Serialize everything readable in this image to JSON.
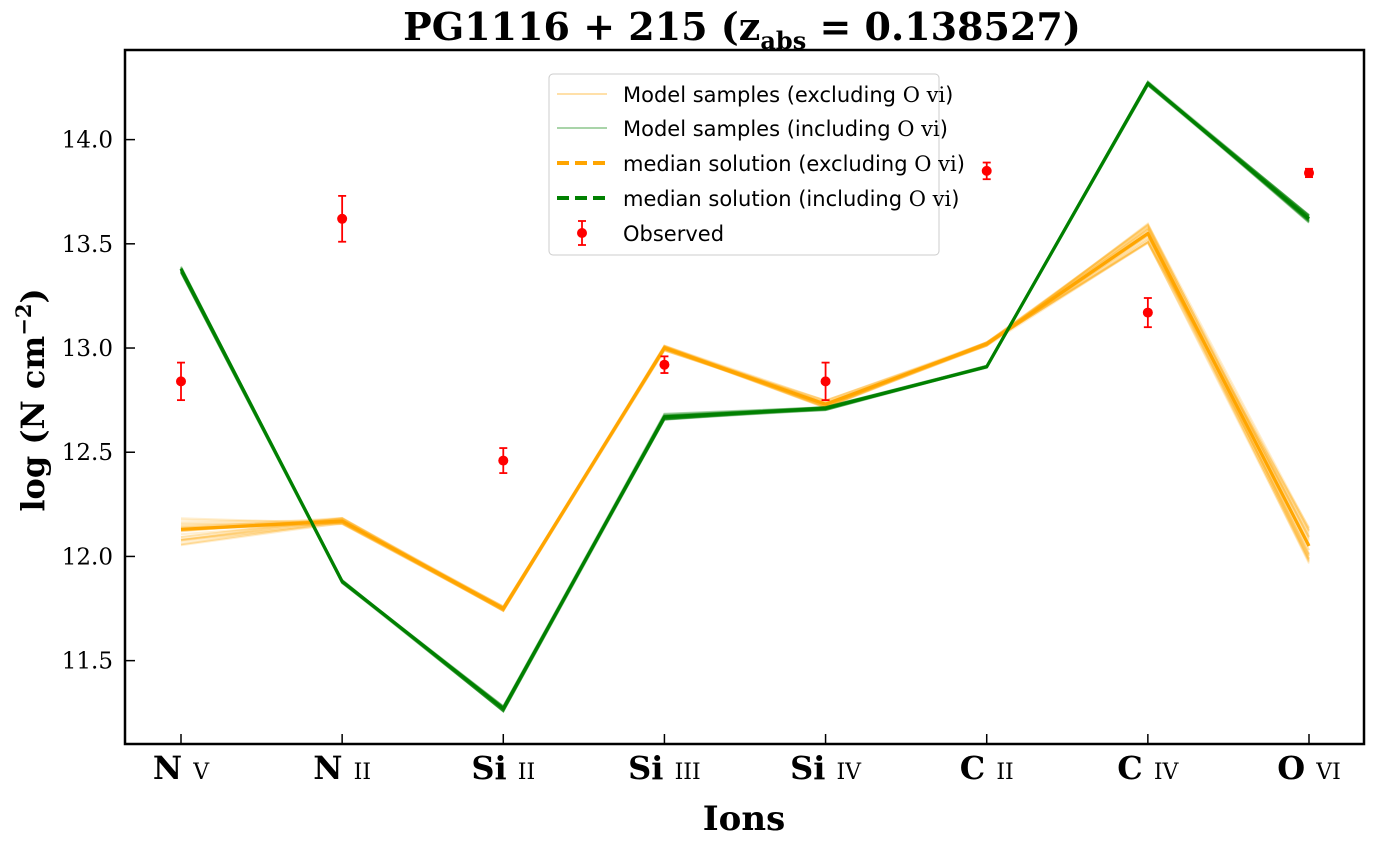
{
  "chart_data": {
    "type": "line",
    "title": "PG1116 + 215 (z",
    "title_sub": "abs",
    "title_tail": " = 0.138527)",
    "xlabel": "Ions",
    "ylabel": "log (N cm",
    "ylabel_sup": "−2",
    "ylabel_tail": ")",
    "categories": [
      "N v",
      "N ii",
      "Si ii",
      "Si iii",
      "Si iv",
      "C ii",
      "C iv",
      "O vi"
    ],
    "category_parts": [
      [
        "N",
        "V"
      ],
      [
        "N",
        "II"
      ],
      [
        "Si",
        "II"
      ],
      [
        "Si",
        "III"
      ],
      [
        "Si",
        "IV"
      ],
      [
        "C",
        "II"
      ],
      [
        "C",
        "IV"
      ],
      [
        "O",
        "VI"
      ]
    ],
    "ylim": [
      11.1,
      14.43
    ],
    "yticks": [
      11.5,
      12.0,
      12.5,
      13.0,
      13.5,
      14.0
    ],
    "ytick_labels": [
      "11.5",
      "12.0",
      "12.5",
      "13.0",
      "13.5",
      "14.0"
    ],
    "grid": false,
    "legend_position": "top-center",
    "series": [
      {
        "name": "median solution (excluding O vi)",
        "legend_label": "median solution (excluding",
        "legend_ion": "O vi",
        "color": "#ffa500",
        "values": [
          12.13,
          12.17,
          11.75,
          13.0,
          12.73,
          13.02,
          13.55,
          12.05
        ]
      },
      {
        "name": "median solution (including O vi)",
        "legend_label": "median solution (including",
        "legend_ion": "O vi",
        "color": "#008000",
        "values": [
          13.38,
          11.88,
          11.27,
          12.67,
          12.71,
          12.91,
          14.27,
          13.62
        ]
      }
    ],
    "model_samples": [
      {
        "name": "Model samples (excluding O vi)",
        "legend_label": "Model samples (excluding",
        "legend_ion": "O vi",
        "color": "#ffa500"
      },
      {
        "name": "Model samples (including O vi)",
        "legend_label": "Model samples (including",
        "legend_ion": "O vi",
        "color": "#008000"
      }
    ],
    "observed": {
      "name": "Observed",
      "color": "#ff0000",
      "values": [
        12.84,
        13.62,
        12.46,
        12.92,
        12.84,
        13.85,
        13.17,
        13.84
      ],
      "errors": [
        0.09,
        0.11,
        0.06,
        0.04,
        0.09,
        0.04,
        0.07,
        0.02
      ]
    }
  }
}
